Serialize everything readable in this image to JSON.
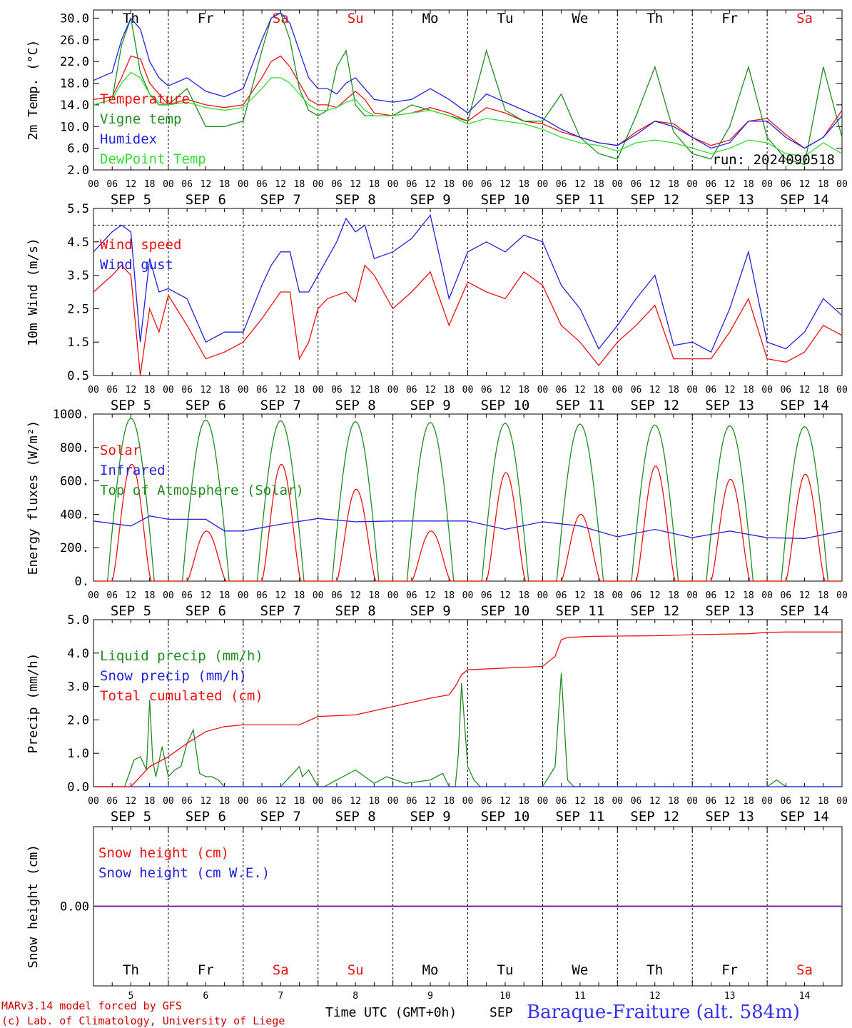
{
  "colors": {
    "red": "#ee1111",
    "green": "#228b22",
    "blue": "#2222dd",
    "lightgreen": "#33dd33",
    "purple": "#7722aa"
  },
  "dates": [
    {
      "month": "SEP",
      "day": "5"
    },
    {
      "month": "SEP",
      "day": "6"
    },
    {
      "month": "SEP",
      "day": "7"
    },
    {
      "month": "SEP",
      "day": "8"
    },
    {
      "month": "SEP",
      "day": "9"
    },
    {
      "month": "SEP",
      "day": "10"
    },
    {
      "month": "SEP",
      "day": "11"
    },
    {
      "month": "SEP",
      "day": "12"
    },
    {
      "month": "SEP",
      "day": "13"
    },
    {
      "month": "SEP",
      "day": "14"
    }
  ],
  "weekdays": [
    {
      "label": "Th",
      "weekend": false
    },
    {
      "label": "Fr",
      "weekend": false
    },
    {
      "label": "Sa",
      "weekend": true
    },
    {
      "label": "Su",
      "weekend": true
    },
    {
      "label": "Mo",
      "weekend": false
    },
    {
      "label": "Tu",
      "weekend": false
    },
    {
      "label": "We",
      "weekend": false
    },
    {
      "label": "Th",
      "weekend": false
    },
    {
      "label": "Fr",
      "weekend": false
    },
    {
      "label": "Sa",
      "weekend": true
    }
  ],
  "hour_ticks": [
    "00",
    "06",
    "12",
    "18"
  ],
  "last_tick": "00",
  "footer": {
    "line1": "MARv3.14 model forced by GFS",
    "line2": "(c) Lab. of Climatology, University of Liege",
    "xaxis_title": "Time UTC (GMT+0h)",
    "month": "SEP",
    "station": "Baraque-Fraiture (alt. 584m)"
  },
  "chart_data": [
    {
      "type": "line",
      "ylabel": "2m Temp. (°C)",
      "ylim": [
        2.0,
        31.5
      ],
      "yticks": [
        "30.0",
        "26.0",
        "22.0",
        "18.0",
        "14.0",
        "10.0",
        "6.0",
        "2.0"
      ],
      "ytick_values": [
        30,
        26,
        22,
        18,
        14,
        10,
        6,
        2
      ],
      "annotation": "run: 2024090518",
      "show_weekdays": true,
      "x_unit": "hours since 2024-09-05 00 UTC",
      "series": [
        {
          "name": "Temperature",
          "color": "red",
          "x": [
            0,
            6,
            9,
            12,
            15,
            18,
            21,
            24,
            30,
            36,
            42,
            48,
            54,
            57,
            60,
            63,
            66,
            69,
            72,
            75,
            78,
            81,
            84,
            87,
            90,
            96,
            102,
            108,
            114,
            120,
            126,
            132,
            138,
            144,
            150,
            156,
            162,
            168,
            174,
            180,
            186,
            192,
            198,
            204,
            210,
            216,
            222,
            228,
            234,
            240
          ],
          "y": [
            15,
            15.5,
            19,
            23,
            22.5,
            18,
            16,
            14,
            15,
            14,
            13.5,
            14,
            19,
            22,
            23,
            21,
            18,
            15,
            14,
            14,
            13.5,
            15,
            16.5,
            15,
            12.5,
            12,
            12.5,
            13.5,
            12.5,
            11,
            13.5,
            12.5,
            11,
            10.5,
            9,
            8,
            7,
            6.5,
            9,
            11,
            10.5,
            8,
            6.5,
            7.5,
            11,
            11.5,
            8.5,
            6,
            8,
            13
          ]
        },
        {
          "name": "Vigne temp",
          "color": "green",
          "x": [
            0,
            6,
            9,
            12,
            15,
            18,
            21,
            24,
            30,
            36,
            42,
            48,
            54,
            57,
            60,
            63,
            66,
            69,
            72,
            75,
            78,
            81,
            84,
            87,
            90,
            96,
            102,
            108,
            114,
            120,
            126,
            132,
            138,
            144,
            150,
            156,
            162,
            168,
            174,
            180,
            186,
            192,
            198,
            204,
            210,
            216,
            222,
            228,
            234,
            240
          ],
          "y": [
            14,
            15,
            25,
            30,
            20,
            16,
            14,
            14,
            17,
            10,
            10,
            11,
            24,
            30,
            31,
            26,
            17,
            13,
            12,
            13,
            21,
            24,
            14,
            12,
            12,
            12,
            14,
            13,
            12,
            11,
            24,
            13,
            11,
            11,
            16,
            8,
            5,
            4,
            12,
            21,
            9,
            5,
            4,
            10,
            21,
            8,
            4,
            3,
            21,
            8
          ]
        },
        {
          "name": "Humidex",
          "color": "blue",
          "x": [
            0,
            6,
            9,
            12,
            15,
            18,
            21,
            24,
            30,
            36,
            42,
            48,
            54,
            57,
            60,
            63,
            66,
            69,
            72,
            75,
            78,
            81,
            84,
            87,
            90,
            96,
            102,
            108,
            114,
            120,
            126,
            132,
            138,
            144,
            150,
            156,
            162,
            168,
            174,
            180,
            186,
            192,
            198,
            204,
            210,
            216,
            222,
            228,
            234,
            240
          ],
          "y": [
            18.5,
            20,
            26,
            30,
            28,
            22,
            19,
            17.5,
            19,
            16.5,
            15.5,
            17,
            26,
            30,
            31,
            29,
            24,
            19,
            17,
            17,
            16,
            18,
            19,
            17,
            15,
            14.5,
            15,
            17,
            15,
            12.5,
            16,
            14.5,
            13,
            11.5,
            9.5,
            8,
            7,
            6.5,
            8.5,
            11,
            10,
            8,
            6,
            7,
            11,
            11,
            8,
            6,
            8,
            12
          ]
        },
        {
          "name": "DewPoint Temp",
          "color": "lightgreen",
          "x": [
            0,
            6,
            9,
            12,
            15,
            18,
            21,
            24,
            30,
            36,
            42,
            48,
            54,
            57,
            60,
            63,
            66,
            69,
            72,
            75,
            78,
            81,
            84,
            87,
            90,
            96,
            102,
            108,
            114,
            120,
            126,
            132,
            138,
            144,
            150,
            156,
            162,
            168,
            174,
            180,
            186,
            192,
            198,
            204,
            210,
            216,
            222,
            228,
            234,
            240
          ],
          "y": [
            14,
            15,
            18,
            20,
            19,
            16,
            14.5,
            14,
            14.5,
            13.5,
            13,
            13.5,
            17,
            19,
            19,
            18,
            16,
            14,
            13,
            13,
            13.5,
            14.5,
            15,
            13,
            12,
            12,
            12.5,
            13,
            12,
            10.5,
            11.5,
            11,
            10.5,
            9.5,
            8,
            7,
            6.5,
            5.5,
            7,
            7.5,
            7,
            6,
            5,
            6,
            7.5,
            7,
            5,
            4.5,
            7,
            5
          ]
        }
      ]
    },
    {
      "type": "line",
      "ylabel": "10m Wind (m/s)",
      "ylim": [
        0.5,
        5.5
      ],
      "yticks": [
        "5.5",
        "4.5",
        "3.5",
        "2.5",
        "1.5",
        "0.5"
      ],
      "ytick_values": [
        5.5,
        4.5,
        3.5,
        2.5,
        1.5,
        0.5
      ],
      "reference_line": 5.0,
      "show_weekdays": false,
      "x_unit": "hours since 2024-09-05 00 UTC",
      "series": [
        {
          "name": "Wind speed",
          "color": "red",
          "x": [
            0,
            6,
            9,
            12,
            15,
            18,
            21,
            24,
            30,
            36,
            42,
            48,
            54,
            57,
            60,
            63,
            66,
            69,
            72,
            75,
            78,
            81,
            84,
            87,
            90,
            96,
            102,
            108,
            114,
            120,
            126,
            132,
            138,
            144,
            150,
            156,
            162,
            168,
            174,
            180,
            186,
            192,
            198,
            204,
            210,
            216,
            222,
            228,
            234,
            240
          ],
          "y": [
            3,
            3.5,
            3.8,
            3.5,
            0.5,
            2.5,
            1.8,
            2.9,
            2.0,
            1.0,
            1.2,
            1.5,
            2.2,
            2.6,
            3.0,
            3.0,
            1.0,
            1.5,
            2.5,
            2.8,
            2.9,
            3.0,
            2.7,
            3.8,
            3.5,
            2.5,
            3.0,
            3.6,
            2.0,
            3.3,
            3.0,
            2.8,
            3.6,
            3.2,
            2.0,
            1.5,
            0.8,
            1.5,
            2.0,
            2.6,
            1.0,
            1.0,
            1.0,
            1.8,
            2.8,
            1.0,
            0.9,
            1.2,
            2.0,
            1.7
          ]
        },
        {
          "name": "Wind gust",
          "color": "blue",
          "x": [
            0,
            6,
            9,
            12,
            15,
            18,
            21,
            24,
            30,
            36,
            42,
            48,
            54,
            57,
            60,
            63,
            66,
            69,
            72,
            75,
            78,
            81,
            84,
            87,
            90,
            96,
            102,
            108,
            114,
            120,
            126,
            132,
            138,
            144,
            150,
            156,
            162,
            168,
            174,
            180,
            186,
            192,
            198,
            204,
            210,
            216,
            222,
            228,
            234,
            240
          ],
          "y": [
            4.2,
            4.8,
            5.0,
            4.8,
            1.5,
            4.0,
            3.0,
            3.1,
            2.8,
            1.5,
            1.8,
            1.8,
            3.2,
            3.8,
            4.2,
            4.2,
            3.0,
            3.0,
            3.5,
            4.0,
            4.5,
            5.2,
            4.8,
            5.0,
            4.0,
            4.2,
            4.6,
            5.3,
            2.8,
            4.2,
            4.5,
            4.2,
            4.7,
            4.5,
            3.2,
            2.5,
            1.3,
            2.0,
            2.8,
            3.5,
            1.4,
            1.5,
            1.2,
            2.5,
            4.2,
            1.5,
            1.3,
            1.8,
            2.8,
            2.3
          ]
        }
      ]
    },
    {
      "type": "line",
      "ylabel": "Energy fluxes (W/m²)",
      "ylim": [
        0,
        1000
      ],
      "yticks": [
        "1000.",
        "800.",
        "600.",
        "400.",
        "200.",
        "0."
      ],
      "ytick_values": [
        1000,
        800,
        600,
        400,
        200,
        0
      ],
      "show_weekdays": false,
      "x_unit": "hours since 2024-09-05 00 UTC",
      "solar_peak_days": [
        700,
        300,
        700,
        550,
        300,
        650,
        400,
        690,
        610,
        640
      ],
      "toa_peak_days": [
        975,
        965,
        960,
        955,
        950,
        945,
        940,
        935,
        930,
        925
      ],
      "infrared_x": [
        0,
        12,
        18,
        24,
        36,
        42,
        48,
        60,
        72,
        84,
        96,
        108,
        120,
        132,
        144,
        156,
        168,
        180,
        192,
        204,
        216,
        228,
        240
      ],
      "infrared_y": [
        360,
        330,
        390,
        370,
        370,
        300,
        300,
        340,
        375,
        355,
        360,
        360,
        360,
        310,
        355,
        330,
        265,
        310,
        260,
        300,
        260,
        255,
        300
      ],
      "series": [
        {
          "name": "Solar",
          "color": "red"
        },
        {
          "name": "Infrared",
          "color": "blue"
        },
        {
          "name": "Top of Atmosphere (Solar)",
          "color": "green"
        }
      ]
    },
    {
      "type": "line",
      "ylabel": "Precip (mm/h)",
      "ylim": [
        0,
        5.0
      ],
      "yticks": [
        "5.0",
        "4.0",
        "3.0",
        "2.0",
        "1.0",
        "0.0"
      ],
      "ytick_values": [
        5,
        4,
        3,
        2,
        1,
        0
      ],
      "show_weekdays": false,
      "x_unit": "hours since 2024-09-05 00 UTC",
      "series": [
        {
          "name": "Liquid precip (mm/h)",
          "color": "green",
          "x": [
            0,
            10,
            13,
            15,
            17,
            18,
            19,
            20,
            22,
            24,
            26,
            28,
            30,
            32,
            34,
            36,
            38,
            40,
            42,
            60,
            66,
            67,
            69,
            72,
            74,
            84,
            90,
            94,
            100,
            108,
            112,
            114,
            116,
            117,
            118,
            120,
            122,
            124,
            134,
            144,
            148,
            150,
            151,
            152,
            154,
            160,
            180,
            192,
            216,
            219,
            222,
            240
          ],
          "y": [
            0,
            0,
            0.8,
            0.9,
            0.5,
            2.6,
            0.8,
            0.3,
            1.2,
            0.3,
            0.5,
            0.6,
            1.3,
            1.7,
            0.4,
            0.3,
            0.3,
            0.2,
            0,
            0,
            0.6,
            0.3,
            0.5,
            0,
            0,
            0.5,
            0.1,
            0.3,
            0.1,
            0.2,
            0.4,
            0,
            0,
            1.0,
            3.1,
            0.6,
            0.2,
            0,
            0,
            0,
            0.6,
            3.4,
            1.8,
            0.2,
            0,
            0,
            0,
            0,
            0,
            0.2,
            0,
            0
          ]
        },
        {
          "name": "Snow precip (mm/h)",
          "color": "blue",
          "x": [
            0,
            240
          ],
          "y": [
            0,
            0
          ]
        },
        {
          "name": "Total cumulated (cm)",
          "color": "red",
          "x": [
            0,
            12,
            18,
            24,
            30,
            36,
            42,
            48,
            60,
            66,
            72,
            84,
            96,
            108,
            114,
            116,
            118,
            120,
            144,
            148,
            150,
            152,
            160,
            180,
            192,
            210,
            216,
            222,
            240
          ],
          "y": [
            0,
            0,
            0.6,
            0.9,
            1.3,
            1.65,
            1.8,
            1.85,
            1.85,
            1.85,
            2.1,
            2.15,
            2.4,
            2.65,
            2.75,
            3.0,
            3.35,
            3.5,
            3.6,
            3.9,
            4.4,
            4.47,
            4.5,
            4.52,
            4.55,
            4.58,
            4.62,
            4.63,
            4.63
          ]
        }
      ]
    },
    {
      "type": "line",
      "ylabel": "Snow height (cm)",
      "yticks": [
        "0.00"
      ],
      "ytick_values": [
        0
      ],
      "ylim": [
        -1,
        1
      ],
      "show_weekdays_bottom": true,
      "x_unit": "hours since 2024-09-05 00 UTC",
      "series": [
        {
          "name": "Snow height (cm)",
          "color": "red",
          "x": [
            0,
            240
          ],
          "y": [
            0,
            0
          ]
        },
        {
          "name": "Snow height (cm W.E.)",
          "color": "blue",
          "x": [
            0,
            240
          ],
          "y": [
            0,
            0
          ]
        }
      ]
    }
  ]
}
